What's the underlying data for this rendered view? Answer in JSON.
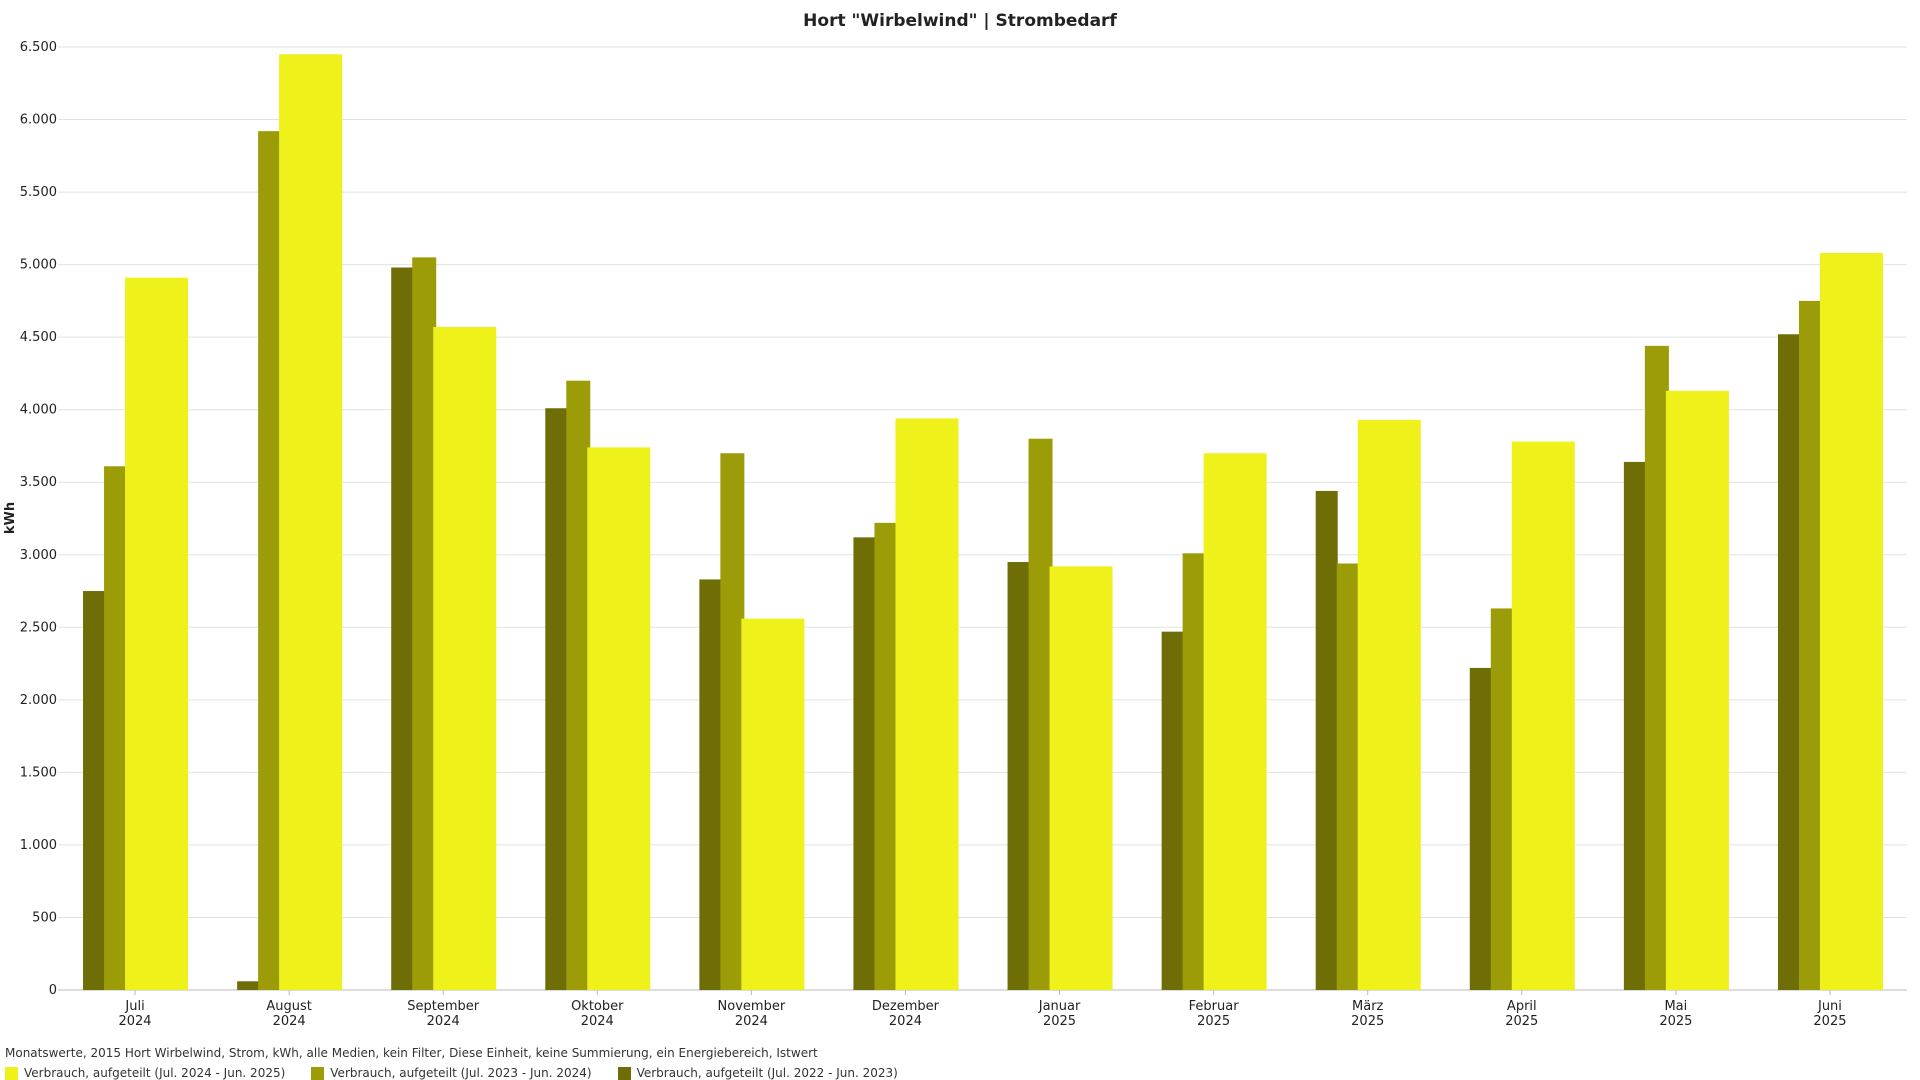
{
  "chart_data": {
    "type": "bar",
    "title": "Hort \"Wirbelwind\" | Strombedarf",
    "ylabel": "kWh",
    "xlabel": "",
    "ylim": [
      0,
      6500
    ],
    "yticks": [
      {
        "value": 0,
        "label": "0"
      },
      {
        "value": 500,
        "label": "500"
      },
      {
        "value": 1000,
        "label": "1.000"
      },
      {
        "value": 1500,
        "label": "1.500"
      },
      {
        "value": 2000,
        "label": "2.000"
      },
      {
        "value": 2500,
        "label": "2.500"
      },
      {
        "value": 3000,
        "label": "3.000"
      },
      {
        "value": 3500,
        "label": "3.500"
      },
      {
        "value": 4000,
        "label": "4.000"
      },
      {
        "value": 4500,
        "label": "4.500"
      },
      {
        "value": 5000,
        "label": "5.000"
      },
      {
        "value": 5500,
        "label": "5.500"
      },
      {
        "value": 6000,
        "label": "6.000"
      },
      {
        "value": 6500,
        "label": "6.500"
      }
    ],
    "grid": true,
    "legend_position": "bottom-left",
    "categories": [
      {
        "month": "Juli",
        "year": "2024"
      },
      {
        "month": "August",
        "year": "2024"
      },
      {
        "month": "September",
        "year": "2024"
      },
      {
        "month": "Oktober",
        "year": "2024"
      },
      {
        "month": "November",
        "year": "2024"
      },
      {
        "month": "Dezember",
        "year": "2024"
      },
      {
        "month": "Januar",
        "year": "2025"
      },
      {
        "month": "Februar",
        "year": "2025"
      },
      {
        "month": "März",
        "year": "2025"
      },
      {
        "month": "April",
        "year": "2025"
      },
      {
        "month": "Mai",
        "year": "2025"
      },
      {
        "month": "Juni",
        "year": "2025"
      }
    ],
    "series": [
      {
        "name": "Verbrauch, aufgeteilt (Jul. 2022 - Jun. 2023)",
        "color": "#6e6d06",
        "values": [
          2750,
          60,
          4980,
          4010,
          2830,
          3120,
          2950,
          2470,
          3440,
          2220,
          3640,
          4520
        ]
      },
      {
        "name": "Verbrauch, aufgeteilt (Jul. 2023 - Jun. 2024)",
        "color": "#9c9c08",
        "values": [
          3610,
          5920,
          5050,
          4200,
          3700,
          3220,
          3800,
          3010,
          2940,
          2630,
          4440,
          4750
        ]
      },
      {
        "name": "Verbrauch, aufgeteilt (Jul. 2024 - Jun. 2025)",
        "color": "#eef11a",
        "values": [
          4910,
          6450,
          4570,
          3740,
          2560,
          3940,
          2920,
          3700,
          3930,
          3780,
          4130,
          5080
        ]
      }
    ]
  },
  "footer": {
    "description": "Monatswerte, 2015 Hort Wirbelwind, Strom, kWh, alle Medien, kein Filter, Diese Einheit, keine Summierung, ein Energiebereich, Istwert"
  },
  "legend": [
    {
      "label": "Verbrauch, aufgeteilt (Jul. 2024 - Jun. 2025)",
      "color": "#eef11a"
    },
    {
      "label": "Verbrauch, aufgeteilt (Jul. 2023 - Jun. 2024)",
      "color": "#9c9c08"
    },
    {
      "label": "Verbrauch, aufgeteilt (Jul. 2022 - Jun. 2023)",
      "color": "#6e6d06"
    }
  ]
}
